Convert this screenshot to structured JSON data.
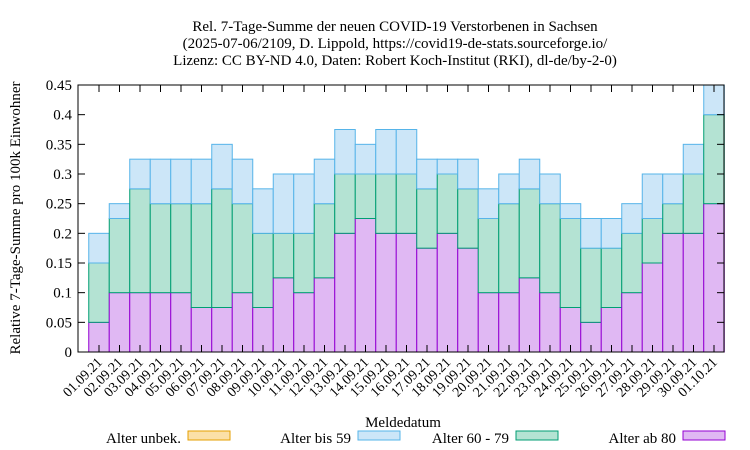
{
  "chart_data": {
    "type": "bar",
    "stacked": true,
    "title": [
      "Rel. 7-Tage-Summe der neuen COVID-19 Verstorbenen in Sachsen",
      "(2025-07-06/2109, D. Lippold, https://covid19-de-stats.sourceforge.io/",
      "Lizenz: CC BY-ND 4.0, Daten: Robert Koch-Institut (RKI), dl-de/by-2-0)"
    ],
    "xlabel": "Meldedatum",
    "ylabel": "Relative 7-Tage-Summe pro 100k Einwohner",
    "ylim": [
      0,
      0.45
    ],
    "yticks": [
      "0",
      "0.05",
      "0.1",
      "0.15",
      "0.2",
      "0.25",
      "0.3",
      "0.35",
      "0.4",
      "0.45"
    ],
    "grid": false,
    "legend_position": "bottom",
    "categories": [
      "01.09.21",
      "02.09.21",
      "03.09.21",
      "04.09.21",
      "05.09.21",
      "06.09.21",
      "07.09.21",
      "08.09.21",
      "09.09.21",
      "10.09.21",
      "11.09.21",
      "12.09.21",
      "13.09.21",
      "14.09.21",
      "15.09.21",
      "16.09.21",
      "17.09.21",
      "18.09.21",
      "19.09.21",
      "20.09.21",
      "21.09.21",
      "22.09.21",
      "23.09.21",
      "24.09.21",
      "25.09.21",
      "26.09.21",
      "27.09.21",
      "28.09.21",
      "29.09.21",
      "30.09.21",
      "01.10.21"
    ],
    "series": [
      {
        "name": "Alter unbek.",
        "fill": "#fbe0a8",
        "stroke": "#e69f00",
        "values": [
          0,
          0,
          0,
          0,
          0,
          0,
          0,
          0,
          0,
          0,
          0,
          0,
          0,
          0,
          0,
          0,
          0,
          0,
          0,
          0,
          0,
          0,
          0,
          0,
          0,
          0,
          0,
          0,
          0,
          0,
          0
        ]
      },
      {
        "name": "Alter bis 59",
        "fill": "#cce6f8",
        "stroke": "#56b4e9",
        "values": [
          0.05,
          0.025,
          0.05,
          0.075,
          0.075,
          0.075,
          0.075,
          0.075,
          0.075,
          0.1,
          0.1,
          0.075,
          0.075,
          0.05,
          0.075,
          0.075,
          0.05,
          0.025,
          0.05,
          0.05,
          0.05,
          0.05,
          0.05,
          0.025,
          0.05,
          0.05,
          0.05,
          0.075,
          0.05,
          0.05,
          0.05
        ]
      },
      {
        "name": "Alter 60 - 79",
        "fill": "#b4e3d3",
        "stroke": "#009e73",
        "values": [
          0.1,
          0.125,
          0.175,
          0.15,
          0.15,
          0.175,
          0.2,
          0.15,
          0.125,
          0.075,
          0.1,
          0.125,
          0.1,
          0.075,
          0.1,
          0.1,
          0.1,
          0.1,
          0.1,
          0.125,
          0.15,
          0.15,
          0.15,
          0.15,
          0.125,
          0.1,
          0.1,
          0.075,
          0.05,
          0.1,
          0.15
        ]
      },
      {
        "name": "Alter ab 80",
        "fill": "#e0b8f3",
        "stroke": "#9400d3",
        "values": [
          0.05,
          0.1,
          0.1,
          0.1,
          0.1,
          0.075,
          0.075,
          0.1,
          0.075,
          0.125,
          0.1,
          0.125,
          0.2,
          0.225,
          0.2,
          0.2,
          0.175,
          0.2,
          0.175,
          0.1,
          0.1,
          0.125,
          0.1,
          0.075,
          0.05,
          0.075,
          0.1,
          0.15,
          0.2,
          0.2,
          0.25
        ]
      }
    ]
  }
}
